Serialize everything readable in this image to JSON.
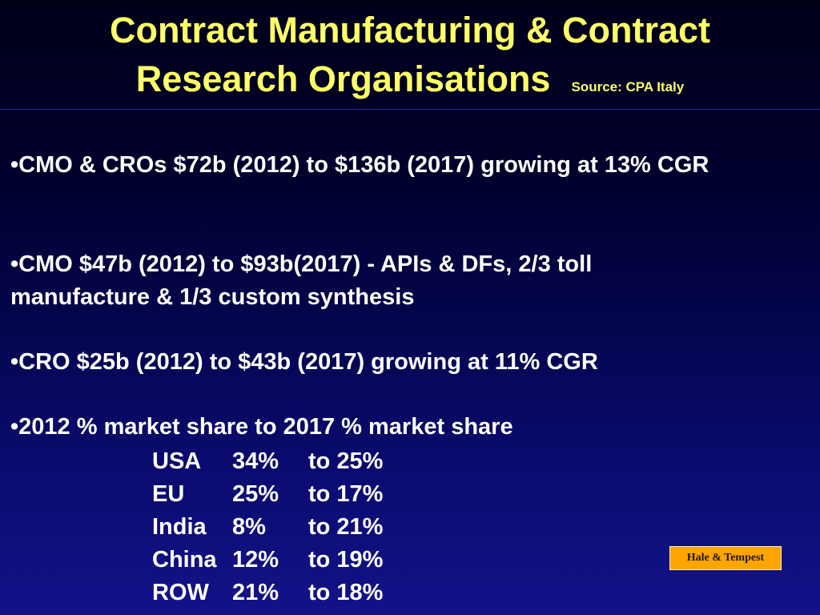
{
  "slide": {
    "title_line1": "Contract Manufacturing & Contract",
    "title_line2": "Research Organisations",
    "source": "Source: CPA Italy",
    "bullets": [
      "•CMO & CROs  $72b (2012) to $136b (2017) growing at 13% CGR",
      "•CMO $47b (2012) to $93b(2017) - APIs & DFs,  2/3 toll manufacture & 1/3 custom synthesis",
      "•CRO $25b (2012) to $43b (2017) growing at 11% CGR",
      "•2012  % market share to 2017 % market share"
    ],
    "market_share": [
      {
        "region": "USA",
        "from": "34%",
        "to": "to 25%"
      },
      {
        "region": "EU",
        "from": "25%",
        "to": "to 17%"
      },
      {
        "region": "India",
        "from": "8%",
        "to": "to 21%"
      },
      {
        "region": "China",
        "from": "12%",
        "to": "to 19%"
      },
      {
        "region": "ROW",
        "from": "21%",
        "to": "to 18%"
      }
    ],
    "badge": "Hale & Tempest"
  },
  "colors": {
    "title": "#ffff66",
    "text": "#ffffff",
    "badge_bg": "#ffa400",
    "background_top": "#000018",
    "background_bottom": "#13138a"
  }
}
